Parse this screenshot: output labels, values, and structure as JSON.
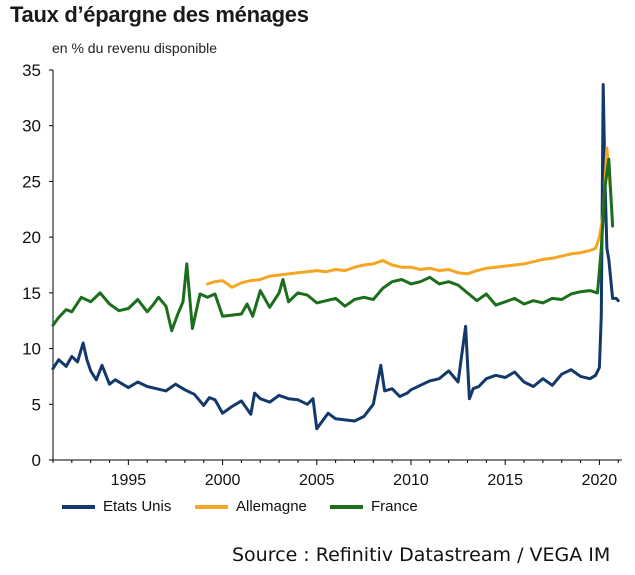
{
  "chart_data": {
    "type": "line",
    "title": "Taux d’épargne des ménages",
    "subtitle": "en % du revenu disponible",
    "xlim": [
      1991,
      2021.2
    ],
    "ylim": [
      0,
      35
    ],
    "yticks": [
      0,
      5,
      10,
      15,
      20,
      25,
      30,
      35
    ],
    "xticks": [
      1995,
      2000,
      2005,
      2010,
      2015,
      2020
    ],
    "grid": false,
    "legend_position": "bottom",
    "series": [
      {
        "name": "Etats Unis",
        "color": "#13386b",
        "x": [
          1991,
          1991.3,
          1991.7,
          1992,
          1992.3,
          1992.6,
          1992.8,
          1993,
          1993.3,
          1993.6,
          1994,
          1994.3,
          1994.6,
          1995,
          1995.5,
          1996,
          1996.5,
          1997,
          1997.5,
          1998,
          1998.5,
          1999,
          1999.3,
          1999.6,
          2000,
          2000.5,
          2001,
          2001.5,
          2001.7,
          2002,
          2002.5,
          2003,
          2003.5,
          2004,
          2004.5,
          2004.8,
          2005,
          2005.3,
          2005.6,
          2006,
          2006.5,
          2007,
          2007.5,
          2008,
          2008.4,
          2008.6,
          2009,
          2009.4,
          2009.8,
          2010,
          2010.5,
          2011,
          2011.5,
          2012,
          2012.5,
          2012.9,
          2013.1,
          2013.3,
          2013.6,
          2014,
          2014.5,
          2015,
          2015.5,
          2016,
          2016.5,
          2017,
          2017.5,
          2018,
          2018.5,
          2019,
          2019.5,
          2019.8,
          2020,
          2020.1,
          2020.2,
          2020.3,
          2020.4,
          2020.5,
          2020.7,
          2020.9,
          2021
        ],
        "y": [
          8.2,
          9.0,
          8.4,
          9.3,
          8.8,
          10.5,
          9.0,
          8.0,
          7.2,
          8.5,
          6.8,
          7.2,
          6.9,
          6.5,
          7.0,
          6.6,
          6.4,
          6.2,
          6.8,
          6.3,
          5.9,
          4.9,
          5.6,
          5.4,
          4.2,
          4.8,
          5.3,
          4.1,
          6.0,
          5.5,
          5.2,
          5.8,
          5.5,
          5.4,
          5.0,
          5.5,
          2.8,
          3.5,
          4.2,
          3.7,
          3.6,
          3.5,
          3.9,
          5.0,
          8.5,
          6.2,
          6.4,
          5.7,
          6.0,
          6.3,
          6.7,
          7.1,
          7.3,
          8.0,
          7.0,
          12.0,
          5.5,
          6.4,
          6.6,
          7.3,
          7.6,
          7.4,
          7.9,
          7.0,
          6.6,
          7.3,
          6.7,
          7.7,
          8.1,
          7.5,
          7.3,
          7.6,
          8.3,
          13.0,
          33.7,
          25.0,
          19.0,
          18.0,
          14.5,
          14.5,
          14.3
        ]
      },
      {
        "name": "Allemagne",
        "color": "#f5a623",
        "x": [
          1999.2,
          1999.6,
          2000,
          2000.5,
          2001,
          2001.5,
          2002,
          2002.5,
          2003,
          2003.5,
          2004,
          2004.5,
          2005,
          2005.5,
          2006,
          2006.5,
          2007,
          2007.5,
          2008,
          2008.5,
          2009,
          2009.5,
          2010,
          2010.5,
          2011,
          2011.5,
          2012,
          2012.5,
          2013,
          2013.5,
          2014,
          2014.5,
          2015,
          2015.5,
          2016,
          2016.5,
          2017,
          2017.5,
          2018,
          2018.5,
          2019,
          2019.5,
          2019.8,
          2020,
          2020.2,
          2020.4,
          2020.6
        ],
        "y": [
          15.8,
          16.0,
          16.1,
          15.5,
          15.9,
          16.1,
          16.2,
          16.5,
          16.6,
          16.7,
          16.8,
          16.9,
          17.0,
          16.9,
          17.1,
          17.0,
          17.3,
          17.5,
          17.6,
          17.9,
          17.5,
          17.3,
          17.3,
          17.1,
          17.2,
          17.0,
          17.1,
          16.8,
          16.7,
          17.0,
          17.2,
          17.3,
          17.4,
          17.5,
          17.6,
          17.8,
          18.0,
          18.1,
          18.3,
          18.5,
          18.6,
          18.8,
          19.0,
          20.0,
          22.0,
          28.0,
          24.0
        ]
      },
      {
        "name": "France",
        "color": "#1b6e1b",
        "x": [
          1991,
          1991.3,
          1991.7,
          1992,
          1992.5,
          1993,
          1993.5,
          1994,
          1994.5,
          1995,
          1995.5,
          1996,
          1996.3,
          1996.6,
          1997,
          1997.3,
          1997.6,
          1997.9,
          1998.1,
          1998.4,
          1998.8,
          1999.2,
          1999.6,
          2000,
          2000.5,
          2001,
          2001.3,
          2001.6,
          2002,
          2002.5,
          2003,
          2003.2,
          2003.5,
          2004,
          2004.5,
          2005,
          2005.5,
          2006,
          2006.5,
          2007,
          2007.5,
          2008,
          2008.5,
          2009,
          2009.5,
          2010,
          2010.5,
          2011,
          2011.5,
          2012,
          2012.5,
          2013,
          2013.5,
          2014,
          2014.5,
          2015,
          2015.5,
          2016,
          2016.5,
          2017,
          2017.5,
          2018,
          2018.5,
          2019,
          2019.5,
          2019.9,
          2020.1,
          2020.3,
          2020.5,
          2020.7
        ],
        "y": [
          12.1,
          12.8,
          13.5,
          13.3,
          14.6,
          14.2,
          15.0,
          14.0,
          13.4,
          13.6,
          14.4,
          13.3,
          13.9,
          14.6,
          13.8,
          11.6,
          13.0,
          14.2,
          17.6,
          11.8,
          14.9,
          14.6,
          14.9,
          12.9,
          13.0,
          13.1,
          14.0,
          12.9,
          15.2,
          13.7,
          15.0,
          16.2,
          14.2,
          15.0,
          14.8,
          14.1,
          14.3,
          14.5,
          13.8,
          14.4,
          14.6,
          14.4,
          15.4,
          16.0,
          16.2,
          15.8,
          16.0,
          16.4,
          15.8,
          16.0,
          15.7,
          15.0,
          14.3,
          14.9,
          13.9,
          14.2,
          14.5,
          14.0,
          14.3,
          14.1,
          14.5,
          14.4,
          14.9,
          15.1,
          15.2,
          15.0,
          19.0,
          24.5,
          27.0,
          21.0
        ]
      }
    ]
  },
  "source": "Source : Refinitiv Datastream / VEGA IM"
}
